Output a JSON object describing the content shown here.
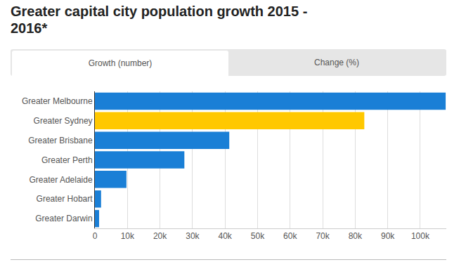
{
  "chart_data": {
    "type": "bar",
    "orientation": "horizontal",
    "title": "Greater capital city population growth 2015 - 2016*",
    "tabs": [
      "Growth (number)",
      "Change (%)"
    ],
    "categories": [
      "Greater Melbourne",
      "Greater Sydney",
      "Greater Brisbane",
      "Greater Perth",
      "Greater Adelaide",
      "Greater Hobart",
      "Greater Darwin"
    ],
    "values": [
      107800,
      82800,
      41300,
      27500,
      9700,
      1900,
      1300
    ],
    "colors": [
      "#1a7fd6",
      "#ffc800",
      "#1a7fd6",
      "#1a7fd6",
      "#1a7fd6",
      "#1a7fd6",
      "#1a7fd6"
    ],
    "xlim": [
      0,
      108000
    ],
    "xticks": [
      0,
      {
        "value": 10000,
        "label": "10k"
      },
      {
        "value": 20000,
        "label": "20k"
      },
      {
        "value": 30000,
        "label": "30k"
      },
      {
        "value": 40000,
        "label": "40k"
      },
      {
        "value": 50000,
        "label": "50k"
      },
      {
        "value": 60000,
        "label": "60k"
      },
      {
        "value": 70000,
        "label": "70k"
      },
      {
        "value": 80000,
        "label": "80k"
      },
      {
        "value": 90000,
        "label": "90k"
      },
      {
        "value": 100000,
        "label": "100k"
      }
    ],
    "grid": true
  }
}
